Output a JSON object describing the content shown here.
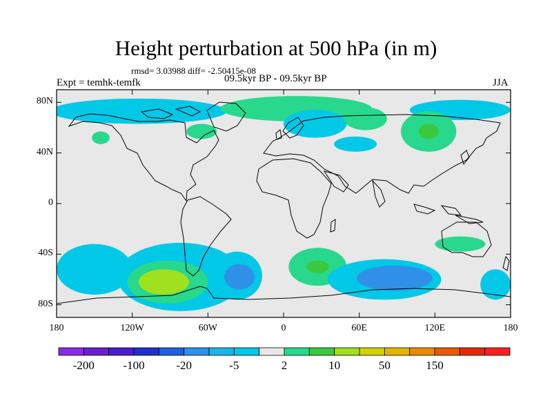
{
  "title": "Height perturbation at 500 hPa (in m)",
  "stats": "rmsd= 3.03988 diff= -2.50415e-08",
  "experiment": "Expt = temhk-temfk",
  "period": "09.5kyr BP - 09.5kyr BP",
  "season": "JJA",
  "map": {
    "lon_range": [
      -180,
      180
    ],
    "lat_range": [
      -90,
      90
    ],
    "background_color": "#e8e8e8"
  },
  "axes": {
    "y_ticks": [
      {
        "label": "80N",
        "lat": 80
      },
      {
        "label": "40N",
        "lat": 40
      },
      {
        "label": "0",
        "lat": 0
      },
      {
        "label": "40S",
        "lat": -40
      },
      {
        "label": "80S",
        "lat": -80
      }
    ],
    "x_ticks": [
      {
        "label": "180",
        "lon": -180
      },
      {
        "label": "120W",
        "lon": -120
      },
      {
        "label": "60W",
        "lon": -60
      },
      {
        "label": "0",
        "lon": 0
      },
      {
        "label": "60E",
        "lon": 60
      },
      {
        "label": "120E",
        "lon": 120
      },
      {
        "label": "180",
        "lon": 180
      }
    ]
  },
  "colorbar": {
    "colors": [
      "#8a2be2",
      "#6a1fd0",
      "#4a1fc8",
      "#2030c8",
      "#2060e0",
      "#3090e8",
      "#1ab4e8",
      "#00c8e6",
      "#e8e8e8",
      "#28d88c",
      "#3cc83c",
      "#a0e01e",
      "#d2d200",
      "#e6b400",
      "#e68c00",
      "#e65a00",
      "#e62800",
      "#ff2020"
    ],
    "labels": [
      {
        "text": "-200",
        "boundary": 1
      },
      {
        "text": "-100",
        "boundary": 3
      },
      {
        "text": "-20",
        "boundary": 5
      },
      {
        "text": "-5",
        "boundary": 7
      },
      {
        "text": "2",
        "boundary": 9
      },
      {
        "text": "10",
        "boundary": 11
      },
      {
        "text": "50",
        "boundary": 13
      },
      {
        "text": "150",
        "boundary": 15
      }
    ]
  },
  "field": [
    {
      "lon": -115,
      "lat": 73,
      "rx": 70,
      "ry": 10,
      "color": "#00c8e6"
    },
    {
      "lon": 10,
      "lat": 75,
      "rx": 60,
      "ry": 10,
      "color": "#28d88c"
    },
    {
      "lon": 140,
      "lat": 74,
      "rx": 40,
      "ry": 8,
      "color": "#00c8e6"
    },
    {
      "lon": 25,
      "lat": 63,
      "rx": 25,
      "ry": 11,
      "color": "#00c8e6"
    },
    {
      "lon": 65,
      "lat": 67,
      "rx": 17,
      "ry": 9,
      "color": "#28d88c"
    },
    {
      "lon": 57,
      "lat": 47,
      "rx": 17,
      "ry": 6,
      "color": "#00c8e6"
    },
    {
      "lon": 115,
      "lat": 57,
      "rx": 22,
      "ry": 16,
      "color": "#28d88c"
    },
    {
      "lon": 115,
      "lat": 57,
      "rx": 8,
      "ry": 6,
      "color": "#3cc83c"
    },
    {
      "lon": -145,
      "lat": 52,
      "rx": 7,
      "ry": 5,
      "color": "#28d88c"
    },
    {
      "lon": -65,
      "lat": 57,
      "rx": 12,
      "ry": 6,
      "color": "#28d88c"
    },
    {
      "lon": -150,
      "lat": -52,
      "rx": 30,
      "ry": 20,
      "color": "#00c8e6"
    },
    {
      "lon": -82,
      "lat": -58,
      "rx": 50,
      "ry": 27,
      "color": "#00c8e6"
    },
    {
      "lon": -92,
      "lat": -62,
      "rx": 32,
      "ry": 17,
      "color": "#28d88c"
    },
    {
      "lon": -95,
      "lat": -62,
      "rx": 20,
      "ry": 10,
      "color": "#a0e01e"
    },
    {
      "lon": -37,
      "lat": -57,
      "rx": 20,
      "ry": 19,
      "color": "#00c8e6"
    },
    {
      "lon": -35,
      "lat": -58,
      "rx": 12,
      "ry": 10,
      "color": "#3090e8"
    },
    {
      "lon": 27,
      "lat": -50,
      "rx": 23,
      "ry": 15,
      "color": "#28d88c"
    },
    {
      "lon": 27,
      "lat": -50,
      "rx": 9,
      "ry": 5,
      "color": "#3cc83c"
    },
    {
      "lon": 80,
      "lat": -60,
      "rx": 45,
      "ry": 16,
      "color": "#00c8e6"
    },
    {
      "lon": 88,
      "lat": -59,
      "rx": 30,
      "ry": 10,
      "color": "#3090e8"
    },
    {
      "lon": 168,
      "lat": -64,
      "rx": 12,
      "ry": 12,
      "color": "#00c8e6"
    },
    {
      "lon": 140,
      "lat": -32,
      "rx": 20,
      "ry": 6,
      "color": "#28d88c"
    }
  ]
}
